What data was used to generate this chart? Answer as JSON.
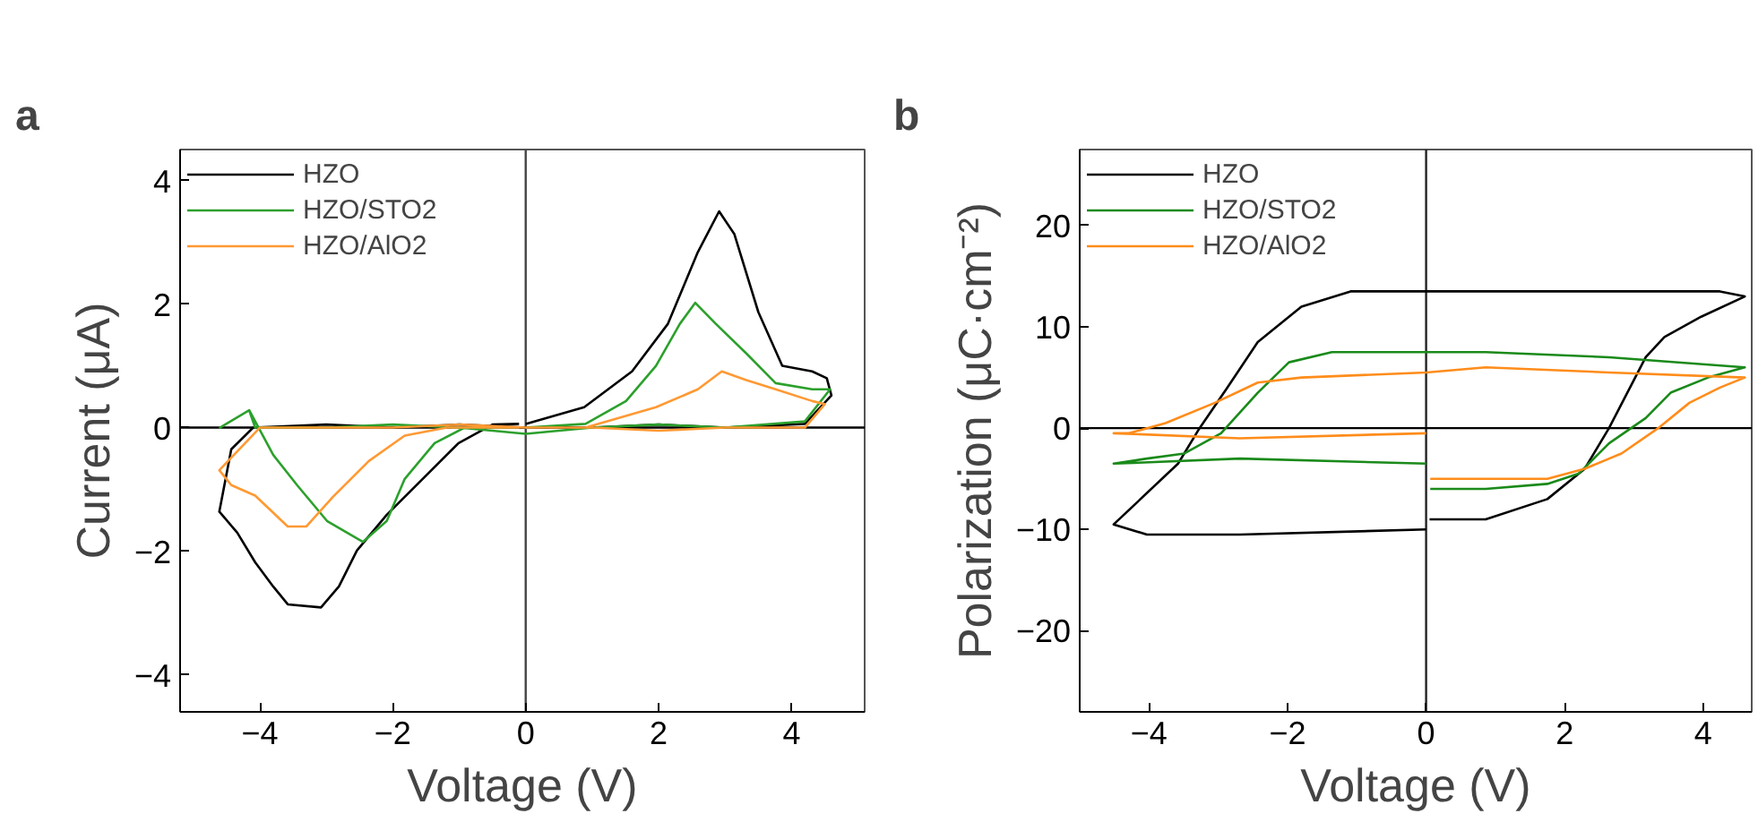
{
  "chart_data": [
    {
      "type": "line",
      "title": "a",
      "xlabel": "Voltage (V)",
      "ylabel": "Current (μA)",
      "xlim": [
        -5.2,
        5.1
      ],
      "ylim": [
        -4.6,
        4.5
      ],
      "xticks": [
        -4,
        -2,
        0,
        2,
        4
      ],
      "yticks": [
        -4,
        -2,
        0,
        2,
        4
      ],
      "legend": "top left",
      "ref_lines": [
        {
          "axis": "x",
          "value": 0,
          "color": "#444444"
        },
        {
          "axis": "y",
          "value": 0,
          "color": "#000000"
        }
      ],
      "series": [
        {
          "name": "HZO",
          "color": "#000000",
          "x": [
            0,
            0.88,
            1.6,
            2.14,
            2.59,
            2.91,
            3.14,
            3.5,
            3.86,
            4.31,
            4.53,
            4.6,
            4.2,
            3,
            2,
            1,
            0,
            -1,
            -2,
            -3,
            -4.1,
            -4.43,
            -4.61,
            -4.34,
            -4.07,
            -3.8,
            -3.58,
            -3.08,
            -2.81,
            -2.54,
            -2.09,
            -1.55,
            -1.01,
            -0.5,
            -0.1
          ],
          "values": [
            0.06,
            0.33,
            0.91,
            1.68,
            2.84,
            3.5,
            3.13,
            1.87,
            1.0,
            0.91,
            0.8,
            0.52,
            0.06,
            0,
            0.05,
            0,
            0,
            0.05,
            0,
            0.05,
            0,
            -0.35,
            -1.36,
            -1.7,
            -2.18,
            -2.57,
            -2.86,
            -2.91,
            -2.57,
            -1.99,
            -1.41,
            -0.83,
            -0.25,
            0.05,
            0.06
          ]
        },
        {
          "name": "HZO/STO2",
          "color": "#2ca02c",
          "x": [
            0,
            0.9,
            1.51,
            1.96,
            2.32,
            2.55,
            2.86,
            3.32,
            3.76,
            4.31,
            4.58,
            4.2,
            3,
            2,
            1,
            0,
            -1,
            -2,
            -3,
            -4.07,
            -4.16,
            -4.6,
            -4.16,
            -3.8,
            -3.44,
            -2.99,
            -2.45,
            -2.09,
            -1.82,
            -1.37,
            -0.92,
            -0.1
          ],
          "values": [
            0,
            0.06,
            0.43,
            1.0,
            1.68,
            2.02,
            1.68,
            1.2,
            0.72,
            0.62,
            0.62,
            0.1,
            0,
            0.05,
            0,
            -0.1,
            0,
            0.05,
            0,
            0,
            0.28,
            0,
            0.28,
            -0.44,
            -0.93,
            -1.51,
            -1.85,
            -1.51,
            -0.83,
            -0.25,
            0,
            0
          ]
        },
        {
          "name": "HZO/AlO2",
          "color": "#ff9933",
          "x": [
            0,
            0.9,
            1.96,
            2.59,
            2.95,
            3.32,
            3.76,
            4.31,
            4.5,
            4.2,
            3,
            2,
            1,
            0,
            -1,
            -2,
            -3,
            -4,
            -4.61,
            -4.43,
            -4.07,
            -3.58,
            -3.3,
            -2.9,
            -2.36,
            -1.82,
            -1.19,
            -0.1
          ],
          "values": [
            0,
            0,
            0.33,
            0.62,
            0.91,
            0.77,
            0.62,
            0.43,
            0.38,
            0,
            0,
            -0.05,
            0,
            0,
            0.05,
            0,
            0,
            0,
            -0.69,
            -0.93,
            -1.1,
            -1.6,
            -1.6,
            -1.12,
            -0.54,
            -0.13,
            0,
            0
          ]
        }
      ]
    },
    {
      "type": "line",
      "title": "b",
      "xlabel": "Voltage (V)",
      "ylabel": "Polarization (μC·cm⁻²)",
      "xlim": [
        -5.0,
        4.7
      ],
      "ylim": [
        -28,
        27.5
      ],
      "xticks": [
        -4,
        -2,
        0,
        2,
        4
      ],
      "yticks": [
        -20,
        -10,
        0,
        10,
        20
      ],
      "legend": "top left",
      "ref_lines": [
        {
          "axis": "x",
          "value": 0,
          "color": "#222222"
        },
        {
          "axis": "y",
          "value": 0,
          "color": "#000000"
        }
      ],
      "series": [
        {
          "name": "HZO",
          "color": "#000000",
          "x": [
            0.05,
            0.86,
            1.75,
            2.29,
            2.64,
            3.17,
            3.44,
            3.97,
            4.6,
            4.24,
            2,
            0,
            -1.09,
            -1.8,
            -2.43,
            -2.87,
            -3.27,
            -3.58,
            -4.51,
            -4.03,
            -2.69,
            0
          ],
          "values": [
            -9,
            -9,
            -7,
            -4,
            0,
            7,
            9,
            11,
            13,
            13.5,
            13.5,
            13.5,
            13.5,
            12,
            8.5,
            4,
            0,
            -3.5,
            -9.5,
            -10.5,
            -10.5,
            -10
          ]
        },
        {
          "name": "HZO/STO2",
          "color": "#1a8a1a",
          "x": [
            0.06,
            0.86,
            1.75,
            2.2,
            2.64,
            3.17,
            3.53,
            4.07,
            4.6,
            2.64,
            0.86,
            0,
            -1.36,
            -1.98,
            -2.43,
            -2.96,
            -3.49,
            -4.03,
            -4.51,
            -2.69,
            0
          ],
          "values": [
            -6,
            -6,
            -5.5,
            -4.5,
            -1.5,
            1,
            3.5,
            5,
            6,
            7,
            7.5,
            7.5,
            7.5,
            6.5,
            3.5,
            -0.5,
            -2.5,
            -3,
            -3.5,
            -3,
            -3.5
          ]
        },
        {
          "name": "HZO/AlO2",
          "color": "#ff8c1a",
          "x": [
            0.06,
            1.75,
            2.29,
            2.82,
            3.35,
            3.8,
            4.24,
            4.6,
            2.64,
            0.86,
            0,
            -1.8,
            -2.43,
            -3.05,
            -3.76,
            -4.29,
            -4.51,
            -2.69,
            0
          ],
          "values": [
            -5,
            -5,
            -4,
            -2.5,
            0,
            2.5,
            4,
            5,
            5.5,
            6,
            5.5,
            5,
            4.5,
            2.5,
            0.5,
            -0.5,
            -0.5,
            -1,
            -0.5
          ]
        }
      ]
    }
  ]
}
